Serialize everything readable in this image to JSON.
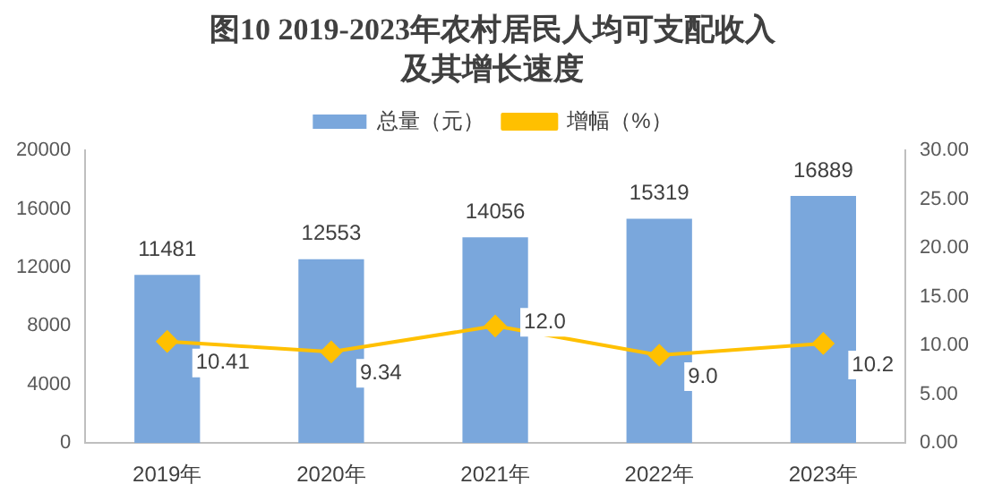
{
  "chart_data": {
    "type": "bar",
    "title": "图10  2019-2023年农村居民人均可支配收入及其增长速度",
    "categories": [
      "2019年",
      "2020年",
      "2021年",
      "2022年",
      "2023年"
    ],
    "series": [
      {
        "name": "总量（元）",
        "color": "#7aa7dc",
        "values": [
          11481,
          12553,
          14056,
          15319,
          16889
        ]
      },
      {
        "name": "增幅（%）",
        "type": "line",
        "axis": "y2",
        "color": "#ffc000",
        "marker": "diamond",
        "values": [
          10.41,
          9.34,
          12.0,
          9.0,
          10.2
        ],
        "value_labels": [
          "10.41",
          "9.34",
          "12.0",
          "9.0",
          "10.2"
        ]
      }
    ],
    "ylim": [
      0,
      20000
    ],
    "yticks": [
      0,
      4000,
      8000,
      12000,
      16000,
      20000
    ],
    "y2lim": [
      0,
      30
    ],
    "y2ticks": [
      {
        "value": 0,
        "label": "0.00"
      },
      {
        "value": 5,
        "label": "5.00"
      },
      {
        "value": 10,
        "label": "10.00"
      },
      {
        "value": 15,
        "label": "15.00"
      },
      {
        "value": 20,
        "label": "20.00"
      },
      {
        "value": 25,
        "label": "25.00"
      },
      {
        "value": 30,
        "label": "30.00"
      }
    ],
    "data_labels": true,
    "legend": "top",
    "grid": false
  }
}
